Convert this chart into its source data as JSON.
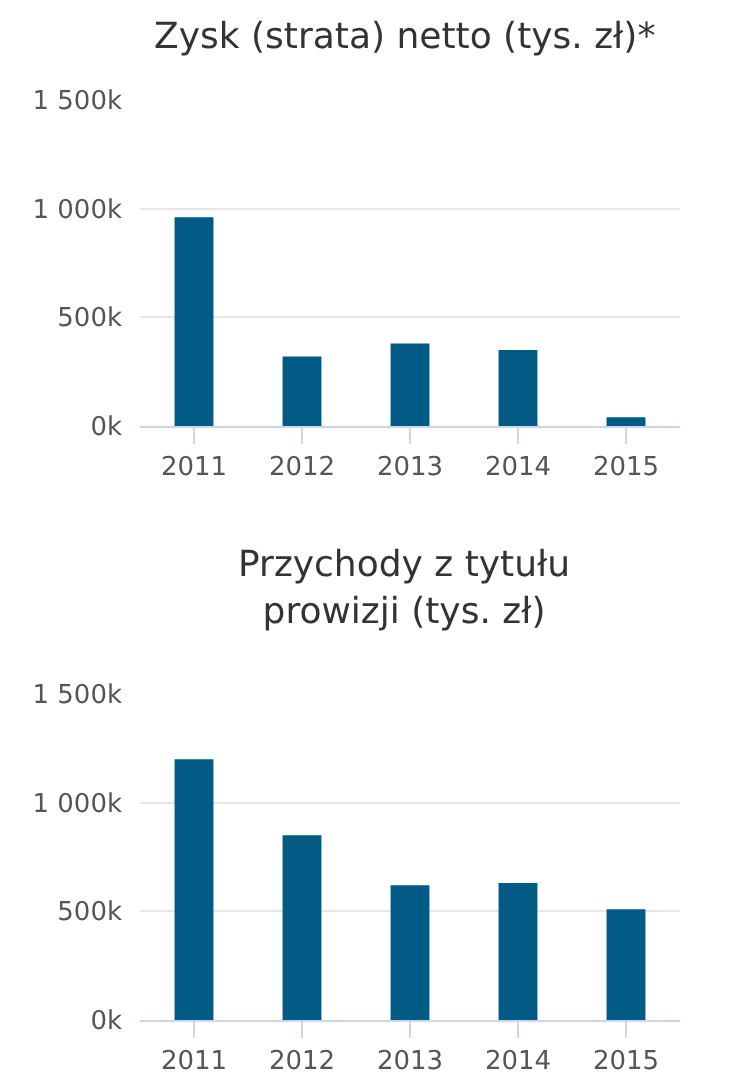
{
  "chart_data": [
    {
      "type": "bar",
      "title": "Zysk (strata) netto (tys. zł)*",
      "categories": [
        "2011",
        "2012",
        "2013",
        "2014",
        "2015"
      ],
      "values": [
        960000,
        320000,
        380000,
        350000,
        40000
      ],
      "color": "#005a84",
      "ylim": [
        0,
        1500000
      ],
      "yticks": [
        {
          "value": 0,
          "label": "0k"
        },
        {
          "value": 500000,
          "label": "500k"
        },
        {
          "value": 1000000,
          "label": "1 000k"
        },
        {
          "value": 1500000,
          "label": "1 500k"
        }
      ],
      "grid": "y"
    },
    {
      "type": "bar",
      "title": "Przychody z tytułu prowizji (tys. zł)",
      "categories": [
        "2011",
        "2012",
        "2013",
        "2014",
        "2015"
      ],
      "values": [
        1200000,
        850000,
        620000,
        630000,
        510000
      ],
      "color": "#005a84",
      "ylim": [
        0,
        1500000
      ],
      "yticks": [
        {
          "value": 0,
          "label": "0k"
        },
        {
          "value": 500000,
          "label": "500k"
        },
        {
          "value": 1000000,
          "label": "1 000k"
        },
        {
          "value": 1500000,
          "label": "1 500k"
        }
      ],
      "grid": "y"
    }
  ]
}
